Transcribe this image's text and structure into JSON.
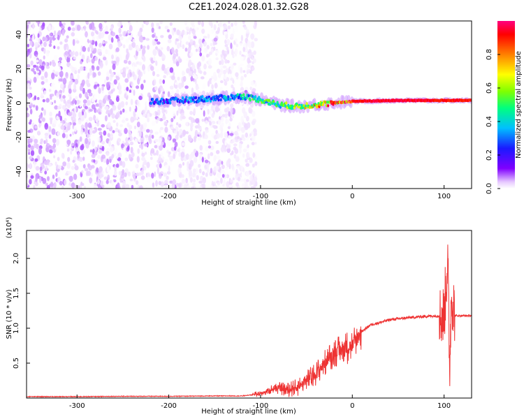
{
  "figure_title": "C2E1.2024.028.01.32.G28",
  "chart_data": [
    {
      "type": "heatmap",
      "xlabel": "Height of straight line (km)",
      "ylabel": "Frequency (Hz)",
      "xlim": [
        -355,
        130
      ],
      "ylim": [
        -50,
        48
      ],
      "x_ticks": [
        "-300",
        "-200",
        "-100",
        "0",
        "100"
      ],
      "x_tick_values": [
        -300,
        -200,
        -100,
        0,
        100
      ],
      "y_ticks": [
        "-40",
        "-20",
        "0",
        "20",
        "40"
      ],
      "y_tick_values": [
        -40,
        -20,
        0,
        20,
        40
      ],
      "colorbar": {
        "label": "Normalized spectral amplitude",
        "range": [
          0,
          1
        ],
        "ticks": [
          "0.0",
          "0.2",
          "0.4",
          "0.6",
          "0.8"
        ],
        "tick_values": [
          0.0,
          0.2,
          0.4,
          0.6,
          0.8
        ],
        "colormap": [
          "#ffffff",
          "#e6c8ff",
          "#8000ff",
          "#1a1aff",
          "#00bfff",
          "#00ff7f",
          "#80ff00",
          "#ffff00",
          "#ff8000",
          "#ff0000",
          "#ff0080"
        ]
      },
      "ridge": {
        "description_points": [
          {
            "x": -210,
            "y": 1,
            "amp": 0.35
          },
          {
            "x": -140,
            "y": 3,
            "amp": 0.4
          },
          {
            "x": -120,
            "y": 4,
            "amp": 0.5
          },
          {
            "x": -100,
            "y": 2,
            "amp": 0.55
          },
          {
            "x": -80,
            "y": -1,
            "amp": 0.6
          },
          {
            "x": -60,
            "y": -2,
            "amp": 0.65
          },
          {
            "x": -40,
            "y": -1,
            "amp": 0.8
          },
          {
            "x": -20,
            "y": 0,
            "amp": 0.9
          },
          {
            "x": 0,
            "y": 1,
            "amp": 0.95
          },
          {
            "x": 50,
            "y": 1.5,
            "amp": 1.0
          },
          {
            "x": 100,
            "y": 1.5,
            "amp": 0.95
          },
          {
            "x": 130,
            "y": 1.5,
            "amp": 0.95
          }
        ]
      }
    },
    {
      "type": "line",
      "xlabel": "Height of straight line (km)",
      "ylabel": "SNR (10 * v/v)",
      "y_multiplier": "(x10⁴)",
      "xlim": [
        -355,
        130
      ],
      "ylim": [
        0,
        2.4
      ],
      "x_ticks": [
        "-300",
        "-200",
        "-100",
        "0",
        "100"
      ],
      "x_tick_values": [
        -300,
        -200,
        -100,
        0,
        100
      ],
      "y_ticks": [
        "0.5",
        "1.0",
        "1.5",
        "2.0"
      ],
      "y_tick_values": [
        0.5,
        1.0,
        1.5,
        2.0
      ],
      "series": [
        {
          "color": "#ee3333",
          "x": [
            -355,
            -300,
            -250,
            -200,
            -150,
            -120,
            -100,
            -90,
            -80,
            -70,
            -60,
            -50,
            -40,
            -30,
            -20,
            -10,
            0,
            10,
            20,
            30,
            40,
            60,
            80,
            95,
            100,
            104,
            106,
            108,
            112,
            120,
            130
          ],
          "values": [
            0.02,
            0.02,
            0.025,
            0.025,
            0.03,
            0.03,
            0.06,
            0.12,
            0.14,
            0.12,
            0.15,
            0.25,
            0.35,
            0.5,
            0.65,
            0.7,
            0.75,
            0.95,
            1.05,
            1.08,
            1.12,
            1.15,
            1.17,
            1.18,
            1.18,
            2.0,
            0.4,
            1.5,
            1.18,
            1.18,
            1.18
          ]
        }
      ]
    }
  ]
}
